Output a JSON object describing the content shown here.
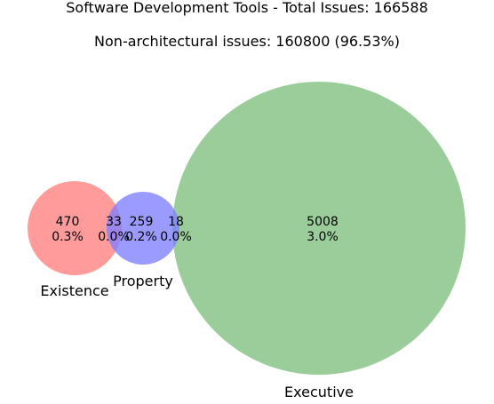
{
  "title": "Software Development Tools - Total Issues: 166588",
  "subtitle": "Non-architectural issues: 160800 (96.53%)",
  "sets": {
    "existence": {
      "label": "Existence",
      "color": "#ff7f7f"
    },
    "property": {
      "label": "Property",
      "color": "#7f7fff"
    },
    "executive": {
      "label": "Executive",
      "color": "#7fbf7f"
    }
  },
  "regions": {
    "existence_only": {
      "count": "470",
      "percent": "0.3%"
    },
    "existence_and_property": {
      "count": "33",
      "percent": "0.0%"
    },
    "property_only": {
      "count": "259",
      "percent": "0.2%"
    },
    "property_and_executive": {
      "count": "18",
      "percent": "0.0%"
    },
    "executive_only": {
      "count": "5008",
      "percent": "3.0%"
    }
  }
}
